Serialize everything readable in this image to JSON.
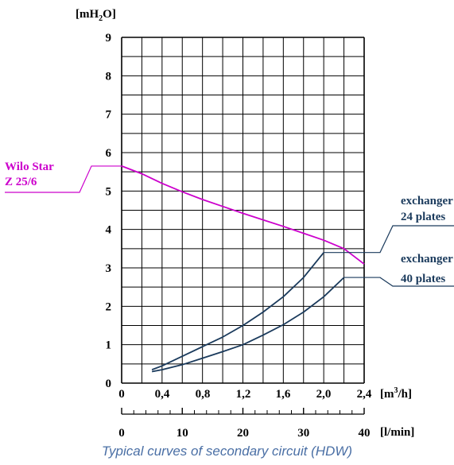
{
  "chart_data": {
    "type": "line",
    "ylabel": "[mH",
    "ylabel_sub": "2",
    "ylabel_end": "O]",
    "xlabel": "[m",
    "xlabel_sup": "3",
    "xlabel_end": "/h]",
    "x2label": "[l/min]",
    "xlim": [
      0,
      2.4
    ],
    "ylim": [
      0,
      9
    ],
    "grid": true,
    "x_ticks": [
      "0",
      "0,4",
      "0,8",
      "1,2",
      "1,6",
      "2,0",
      "2,4"
    ],
    "y_ticks": [
      "0",
      "1",
      "2",
      "3",
      "4",
      "5",
      "6",
      "7",
      "8",
      "9"
    ],
    "x2_ticks": [
      "0",
      "10",
      "20",
      "30",
      "40"
    ],
    "series": [
      {
        "name": "Wilo Star",
        "name_line2": "Z 25/6",
        "color": "#cc00cc",
        "x": [
          0.0,
          0.2,
          0.4,
          0.6,
          0.8,
          1.0,
          1.2,
          1.4,
          1.6,
          1.8,
          2.0,
          2.2,
          2.4
        ],
        "y": [
          5.65,
          5.45,
          5.2,
          4.98,
          4.78,
          4.6,
          4.42,
          4.25,
          4.08,
          3.9,
          3.72,
          3.5,
          3.1
        ]
      },
      {
        "name": "exchanger",
        "name_line2": "24 plates",
        "color": "#1a3a5c",
        "x": [
          0.3,
          0.4,
          0.6,
          0.8,
          1.0,
          1.2,
          1.4,
          1.6,
          1.8,
          2.0
        ],
        "y": [
          0.35,
          0.45,
          0.7,
          0.95,
          1.2,
          1.5,
          1.85,
          2.25,
          2.75,
          3.4
        ]
      },
      {
        "name": "exchanger",
        "name_line2": "40 plates",
        "color": "#1a3a5c",
        "x": [
          0.3,
          0.4,
          0.6,
          0.8,
          1.0,
          1.2,
          1.4,
          1.6,
          1.8,
          2.0,
          2.2
        ],
        "y": [
          0.3,
          0.35,
          0.48,
          0.65,
          0.82,
          1.0,
          1.25,
          1.52,
          1.85,
          2.25,
          2.75
        ]
      }
    ]
  },
  "caption": "Typical curves of secondary circuit (HDW)"
}
